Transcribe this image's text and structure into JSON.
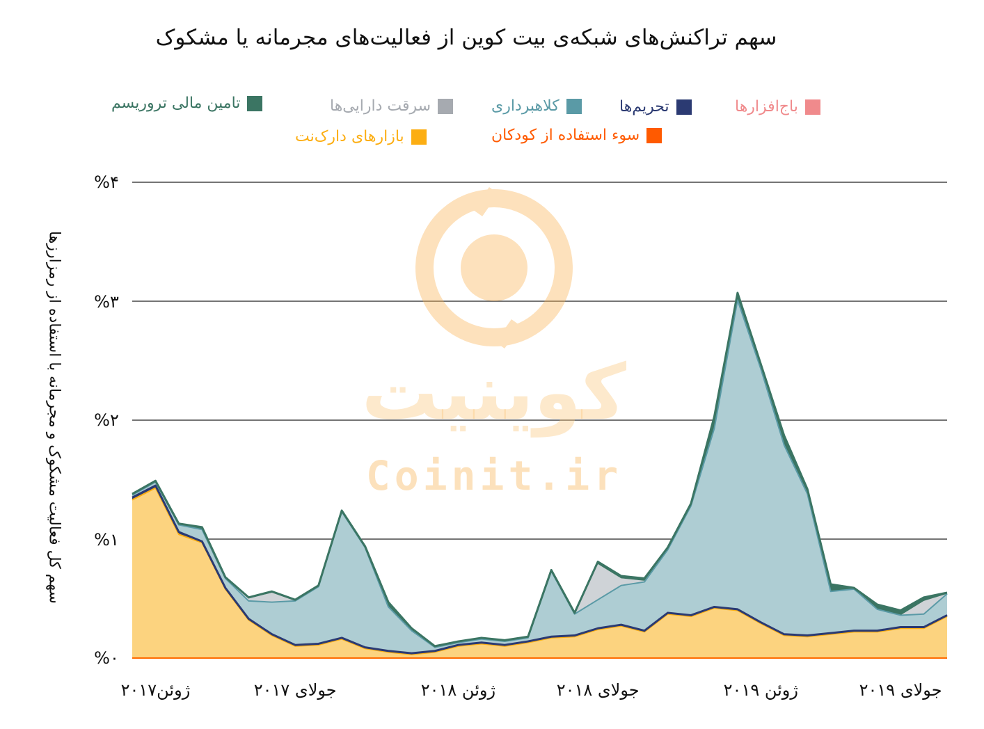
{
  "title": "سهم تراکنش‌های شبکه‌ی بیت کوین از فعالیت‌های مجرمانه یا مشکوک",
  "legend": [
    {
      "label": "تامین مالی تروریسم",
      "color": "#3b7563",
      "text_color": "#3b7563"
    },
    {
      "label": "سرقت دارایی‌ها",
      "color": "#a6aab0",
      "text_color": "#a6aab0"
    },
    {
      "label": "کلاهبرداری",
      "color": "#5a9aa6",
      "text_color": "#5a9aa6"
    },
    {
      "label": "تحریم‌ها",
      "color": "#2b3a72",
      "text_color": "#2b3a72"
    },
    {
      "label": "باج‌افزارها",
      "color": "#f08a8c",
      "text_color": "#f08a8c"
    },
    {
      "label": "سوء استفاده از کودکان",
      "color": "#ff5a00",
      "text_color": "#ff5a00"
    },
    {
      "label": "بازارهای دارک‌نت",
      "color": "#fcae13",
      "text_color": "#fcae13"
    }
  ],
  "watermark": {
    "fa": "کوینیت",
    "en": "Coinit.ir"
  },
  "chart_data": {
    "type": "area",
    "title": "سهم تراکنش‌های شبکه‌ی بیت کوین از فعالیت‌های مجرمانه یا مشکوک",
    "ylabel": "سهم کل فعالیت مشکوک و مجرمانه با استفاده از رمزارزها",
    "xlabel": "",
    "ylim": [
      0,
      4
    ],
    "y_ticks": [
      {
        "value": 0,
        "label": "%۰"
      },
      {
        "value": 1,
        "label": "%۱"
      },
      {
        "value": 2,
        "label": "%۲"
      },
      {
        "value": 3,
        "label": "%۳"
      },
      {
        "value": 4,
        "label": "%۴"
      }
    ],
    "x_ticks": [
      {
        "index": 1,
        "label": "ژوئن۲۰۱۷"
      },
      {
        "index": 7,
        "label": "جولای ۲۰۱۷"
      },
      {
        "index": 14,
        "label": "ژوئن ۲۰۱۸"
      },
      {
        "index": 20,
        "label": "جولای ۲۰۱۸"
      },
      {
        "index": 27,
        "label": "ژوئن ۲۰۱۹"
      },
      {
        "index": 33,
        "label": "جولای ۲۰۱۹"
      }
    ],
    "grid": true,
    "legend_position": "top",
    "series": [
      {
        "name": "بازارهای دارک‌نت",
        "color": "#fcd37f",
        "values": [
          1.33,
          1.43,
          1.04,
          0.97,
          0.58,
          0.32,
          0.19,
          0.1,
          0.11,
          0.16,
          0.08,
          0.05,
          0.03,
          0.05,
          0.1,
          0.12,
          0.1,
          0.13,
          0.17,
          0.18,
          0.24,
          0.27,
          0.22,
          0.37,
          0.35,
          0.42,
          0.4,
          0.29,
          0.19,
          0.18,
          0.2,
          0.22,
          0.22,
          0.25,
          0.25,
          0.35
        ]
      },
      {
        "name": "تحریم‌ها",
        "color": "#2b3a72",
        "values": [
          0.02,
          0.02,
          0.02,
          0.01,
          0.01,
          0.01,
          0.01,
          0.01,
          0.01,
          0.01,
          0.01,
          0.01,
          0.01,
          0.01,
          0.01,
          0.01,
          0.01,
          0.01,
          0.01,
          0.01,
          0.01,
          0.01,
          0.01,
          0.01,
          0.01,
          0.01,
          0.01,
          0.01,
          0.01,
          0.01,
          0.01,
          0.01,
          0.01,
          0.01,
          0.01,
          0.01
        ]
      },
      {
        "name": "کلاهبرداری",
        "color": "#aecdd3",
        "values": [
          0.02,
          0.03,
          0.06,
          0.1,
          0.08,
          0.15,
          0.27,
          0.37,
          0.48,
          1.06,
          0.84,
          0.37,
          0.19,
          0.03,
          0.02,
          0.03,
          0.03,
          0.03,
          0.55,
          0.18,
          0.24,
          0.33,
          0.41,
          0.53,
          0.92,
          1.5,
          2.6,
          2.13,
          1.59,
          1.19,
          0.35,
          0.35,
          0.18,
          0.1,
          0.11,
          0.18
        ]
      },
      {
        "name": "سرقت دارایی‌ها",
        "color": "#cfd3d7",
        "values": [
          0.0,
          0.0,
          0.0,
          0.0,
          0.0,
          0.02,
          0.08,
          0.0,
          0.0,
          0.0,
          0.0,
          0.0,
          0.0,
          0.0,
          0.0,
          0.0,
          0.0,
          0.0,
          0.0,
          0.0,
          0.3,
          0.06,
          0.01,
          0.0,
          0.0,
          0.0,
          0.0,
          0.0,
          0.0,
          0.0,
          0.0,
          0.0,
          0.0,
          0.0,
          0.11,
          0.0
        ]
      },
      {
        "name": "تامین مالی تروریسم",
        "color": "#3b7563",
        "values": [
          0.01,
          0.01,
          0.01,
          0.02,
          0.01,
          0.01,
          0.01,
          0.01,
          0.01,
          0.01,
          0.01,
          0.04,
          0.02,
          0.01,
          0.01,
          0.01,
          0.01,
          0.01,
          0.01,
          0.01,
          0.02,
          0.02,
          0.02,
          0.02,
          0.02,
          0.1,
          0.06,
          0.04,
          0.08,
          0.04,
          0.06,
          0.01,
          0.04,
          0.04,
          0.03,
          0.01
        ]
      }
    ]
  }
}
